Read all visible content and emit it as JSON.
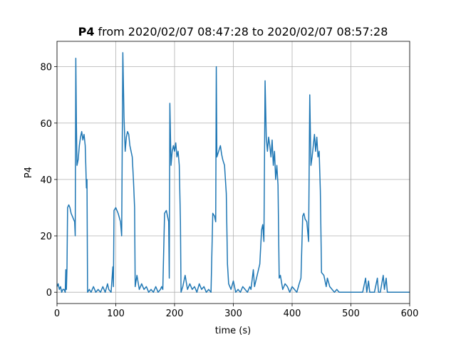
{
  "chart_data": {
    "type": "line",
    "title_bold": "P4",
    "title_rest": "from 2020/02/07 08:47:28 to 2020/02/07 08:57:28",
    "x_label": "time (s)",
    "y_label": "P4",
    "color": "#1f77b4",
    "grid": true,
    "xlim": [
      0,
      600
    ],
    "xticks": [
      0,
      100,
      200,
      300,
      400,
      500,
      600
    ],
    "ylim": [
      -4,
      89
    ],
    "yticks": [
      0,
      20,
      40,
      60,
      80
    ],
    "x": [
      0,
      2,
      4,
      6,
      8,
      10,
      12,
      14,
      15,
      16,
      17,
      18,
      20,
      22,
      24,
      26,
      28,
      30,
      31,
      32,
      33,
      34,
      36,
      38,
      40,
      42,
      44,
      46,
      48,
      49,
      50,
      51,
      52,
      55,
      58,
      62,
      66,
      70,
      74,
      78,
      82,
      86,
      88,
      92,
      95,
      96,
      97,
      100,
      104,
      108,
      110,
      112,
      114,
      116,
      118,
      120,
      122,
      124,
      126,
      128,
      130,
      132,
      133,
      136,
      140,
      144,
      148,
      152,
      156,
      160,
      164,
      168,
      172,
      176,
      178,
      180,
      183,
      186,
      188,
      190,
      191,
      192,
      194,
      196,
      198,
      200,
      202,
      204,
      206,
      208,
      210,
      211,
      214,
      218,
      222,
      226,
      230,
      234,
      238,
      242,
      246,
      250,
      254,
      258,
      262,
      265,
      268,
      270,
      271,
      272,
      275,
      278,
      280,
      282,
      285,
      288,
      290,
      292,
      296,
      300,
      304,
      308,
      312,
      316,
      320,
      324,
      328,
      330,
      334,
      336,
      345,
      348,
      350,
      352,
      354,
      356,
      358,
      360,
      362,
      364,
      366,
      368,
      370,
      372,
      374,
      376,
      378,
      380,
      384,
      388,
      392,
      396,
      400,
      404,
      408,
      412,
      415,
      418,
      420,
      422,
      425,
      428,
      430,
      432,
      434,
      436,
      438,
      440,
      442,
      444,
      446,
      448,
      450,
      454,
      458,
      460,
      464,
      468,
      472,
      476,
      480,
      490,
      500,
      510,
      520,
      525,
      527,
      530,
      532,
      535,
      540,
      545,
      547,
      550,
      555,
      557,
      560,
      562,
      570,
      576,
      580,
      590,
      600
    ],
    "values": [
      2,
      3,
      1,
      2,
      0,
      1,
      1,
      0,
      8,
      1,
      9,
      30,
      31,
      30,
      28,
      27,
      26,
      25,
      20,
      83,
      60,
      45,
      47,
      52,
      55,
      57,
      54,
      56,
      52,
      45,
      37,
      40,
      0,
      1,
      0,
      2,
      0,
      1,
      0,
      2,
      0,
      3,
      1,
      0,
      9,
      2,
      29,
      30,
      28,
      25,
      20,
      85,
      62,
      50,
      55,
      57,
      56,
      52,
      50,
      48,
      40,
      30,
      2,
      6,
      1,
      3,
      1,
      2,
      0,
      1,
      0,
      2,
      0,
      1,
      2,
      1,
      28,
      29,
      27,
      25,
      5,
      67,
      45,
      50,
      52,
      50,
      53,
      48,
      50,
      45,
      25,
      0,
      2,
      6,
      1,
      3,
      1,
      2,
      0,
      3,
      1,
      2,
      0,
      1,
      0,
      28,
      27,
      25,
      80,
      48,
      50,
      52,
      49,
      47,
      45,
      35,
      10,
      3,
      1,
      4,
      0,
      1,
      0,
      2,
      1,
      0,
      2,
      1,
      8,
      2,
      10,
      22,
      24,
      18,
      75,
      55,
      50,
      55,
      52,
      48,
      54,
      45,
      50,
      40,
      45,
      38,
      5,
      6,
      1,
      3,
      2,
      0,
      2,
      1,
      0,
      3,
      5,
      27,
      28,
      26,
      25,
      18,
      70,
      45,
      48,
      52,
      56,
      50,
      55,
      48,
      50,
      36,
      7,
      6,
      2,
      5,
      2,
      1,
      0,
      1,
      0,
      0,
      0,
      0,
      0,
      5,
      0,
      4,
      0,
      0,
      0,
      5,
      0,
      0,
      6,
      1,
      5,
      0,
      0,
      0,
      0,
      0,
      0
    ]
  }
}
